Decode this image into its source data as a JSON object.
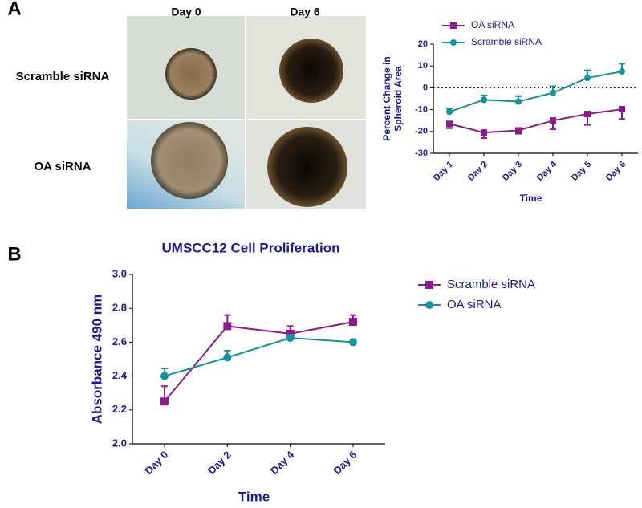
{
  "figure": {
    "panels": [
      "A",
      "B"
    ],
    "image_columns": [
      "Day 0",
      "Day 6"
    ],
    "image_rows": [
      "Scramble siRNA",
      "OA siRNA"
    ]
  },
  "chart_data": [
    {
      "type": "line",
      "xlabel": "Time",
      "ylabel": [
        "Percent Change in",
        "Spheroid Area"
      ],
      "categories": [
        "Day 1",
        "Day 2",
        "Day 3",
        "Day 4",
        "Day 5",
        "Day 6"
      ],
      "ylim": [
        -30,
        20
      ],
      "yticks": [
        -30,
        -20,
        -10,
        0,
        10,
        20
      ],
      "hline": 0,
      "legend": "top-left",
      "series": [
        {
          "name": "OA siRNA",
          "color": "#8b1a8b",
          "marker": "square",
          "error_bars": "down",
          "values": [
            -16.5,
            -20.5,
            -19.5,
            -15,
            -12,
            -9.8
          ],
          "errors": [
            2,
            2.5,
            1.5,
            4,
            5,
            4.5
          ]
        },
        {
          "name": "Scramble siRNA",
          "color": "#16909a",
          "marker": "circle",
          "error_bars": "up",
          "values": [
            -11,
            -5.5,
            -6.3,
            -2.3,
            4.5,
            7.5
          ],
          "errors": [
            1.5,
            2,
            2.5,
            3,
            3.5,
            3.5
          ]
        }
      ]
    },
    {
      "type": "line",
      "title": "UMSCC12 Cell Proliferation",
      "xlabel": "Time",
      "ylabel": [
        "Absorbance 490 nm"
      ],
      "categories": [
        "Day 0",
        "Day 2",
        "Day 4",
        "Day 6"
      ],
      "ylim": [
        2,
        3
      ],
      "yticks": [
        {
          "value": 2,
          "label": "2.0"
        },
        2.2,
        2.4,
        2.6,
        2.8,
        {
          "value": 3,
          "label": "3.0"
        }
      ],
      "legend": "right",
      "series": [
        {
          "name": "Scramble siRNA",
          "color": "#8b1a8b",
          "marker": "square",
          "error_bars": "up",
          "values": [
            2.25,
            2.695,
            2.65,
            2.72
          ],
          "errors": [
            0.09,
            0.065,
            0.045,
            0.04
          ]
        },
        {
          "name": "OA siRNA",
          "color": "#16909a",
          "marker": "circle",
          "error_bars": "up",
          "values": [
            2.4,
            2.51,
            2.625,
            2.6
          ],
          "errors": [
            0.045,
            0.04,
            0.02,
            0.015
          ]
        }
      ]
    }
  ]
}
